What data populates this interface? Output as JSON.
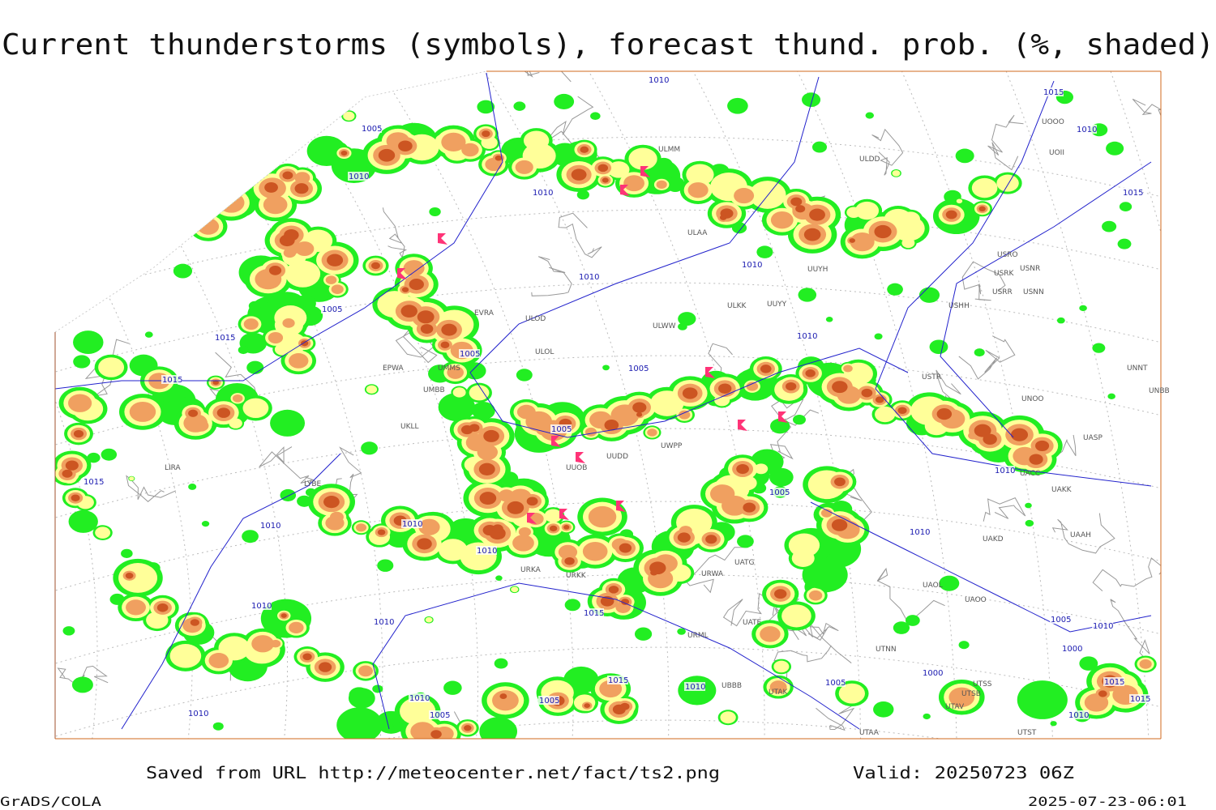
{
  "header": {
    "title": "Current thunderstorms (symbols), forecast thund. prob. (%, shaded)"
  },
  "map": {
    "stations": [
      "ULMM",
      "ULDD",
      "ULAA",
      "ULKK",
      "UUYY",
      "ULWW",
      "ULOL",
      "ULOD",
      "EVRA",
      "UMMS",
      "UMBB",
      "EPWA",
      "UKLL",
      "LIRA",
      "LYBE",
      "UUOB",
      "UUDD",
      "URWA",
      "UATG",
      "UATE",
      "URML",
      "UBBB",
      "UTAK",
      "UTNN",
      "UAOL",
      "UAOO",
      "UAKD",
      "UAKK",
      "UACC",
      "UASP",
      "UNOO",
      "USTR",
      "UNNT",
      "UNBB",
      "USHH",
      "USRR",
      "USNN",
      "USRK",
      "USNR",
      "USRO",
      "UUYH",
      "UOOO",
      "UOII",
      "UAAH",
      "UTSS",
      "UTSB",
      "UTAV",
      "UTAA",
      "UTST",
      "URKA",
      "URKK",
      "UWPP"
    ],
    "isobars": [
      "1010",
      "1005",
      "1010",
      "1010",
      "1005",
      "1010",
      "1015",
      "1015",
      "1005",
      "1005",
      "1010",
      "1015",
      "1015",
      "1010",
      "1010",
      "1005",
      "1010",
      "1015",
      "1010",
      "1010",
      "1010",
      "1005",
      "1010",
      "1005",
      "1000",
      "1010",
      "1005",
      "1015",
      "1010",
      "1010",
      "1015",
      "1005",
      "1010",
      "1015",
      "1000",
      "1010",
      "1005",
      "1010",
      "1015",
      "1010"
    ]
  },
  "footer": {
    "source": "Saved from URL http://meteocenter.net/fact/ts2.png",
    "valid": "Valid: 20250723 06Z",
    "software": "GrADS/COLA",
    "timestamp": "2025-07-23-06:01"
  }
}
